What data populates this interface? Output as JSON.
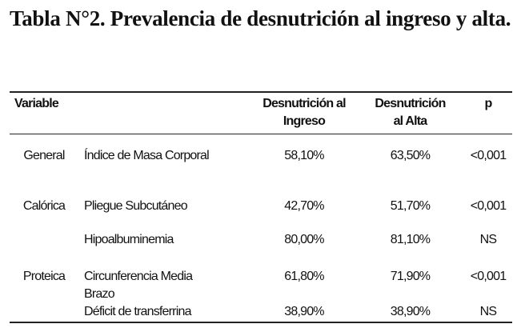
{
  "title": "Tabla N°2. Prevalencia de desnutrición  al ingreso y alta.",
  "headers": {
    "variable": "Variable",
    "ingreso_l1": "Desnutrición al",
    "ingreso_l2": "Ingreso",
    "alta_l1": "Desnutrición",
    "alta_l2": "al Alta",
    "p": "p"
  },
  "rows": [
    {
      "group": "General",
      "indicator": "Índice de Masa Corporal",
      "ingreso": "58,10%",
      "alta": "63,50%",
      "p": "<0,001"
    },
    {
      "group": "Calórica",
      "indicator": "Pliegue Subcutáneo",
      "ingreso": "42,70%",
      "alta": "51,70%",
      "p": "<0,001"
    },
    {
      "group": "",
      "indicator": "Hipoalbuminemia",
      "ingreso": "80,00%",
      "alta": "81,10%",
      "p": "NS"
    },
    {
      "group": "Proteica",
      "indicator_l1": "Circunferencia Media",
      "indicator_l2": "Brazo",
      "ingreso": "61,80%",
      "alta": "71,90%",
      "p": "<0,001"
    },
    {
      "group": "",
      "indicator": "Déficit de transferrina",
      "ingreso": "38,90%",
      "alta": "38,90%",
      "p": "NS"
    }
  ]
}
